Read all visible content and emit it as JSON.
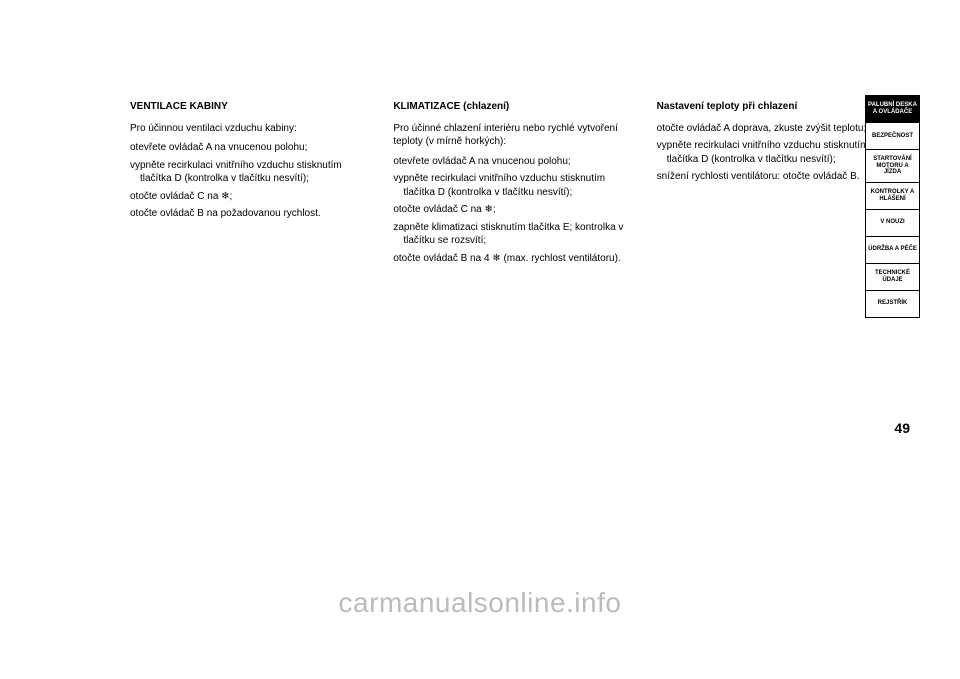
{
  "columns": {
    "col1": {
      "title": "VENTILACE KABINY",
      "intro": "Pro účinnou ventilaci vzduchu kabiny:",
      "items": [
        "otevřete ovládač A na vnucenou polohu;",
        "vypněte recirkulaci vnitřního vzduchu stisknutím tlačítka D (kontrolka v tlačítku nesvítí);",
        "otočte ovládač C na ❄;",
        "otočte ovládač B na požadovanou rychlost."
      ]
    },
    "col2": {
      "title": "KLIMATIZACE (chlazení)",
      "intro": "Pro účinné chlazení interiéru nebo rychlé vytvoření teploty (v mírně horkých):",
      "items": [
        "otevřete ovládač A na vnucenou polohu;",
        "vypněte recirkulaci vnitřního vzduchu stisknutím tlačítka D (kontrolka v tlačítku nesvítí);",
        "otočte ovládač C na ❄;",
        "zapněte klimatizaci stisknutím tlačítka E; kontrolka v tlačítku se rozsvítí;",
        "otočte ovládač B na 4 ❄ (max. rychlost ventilátoru)."
      ]
    },
    "col3": {
      "title": "Nastavení teploty při chlazení",
      "items": [
        "otočte ovládač A doprava, zkuste zvýšit teplotu;",
        "vypněte recirkulaci vnitřního vzduchu stisknutím tlačítka D (kontrolka v tlačítku nesvítí);",
        "snížení rychlosti ventilátoru: otočte ovládač B."
      ]
    }
  },
  "sidebar": {
    "tabs": [
      {
        "label": "PALUBNÍ DESKA A OVLÁDAČE",
        "active": true
      },
      {
        "label": "BEZPEČNOST",
        "active": false
      },
      {
        "label": "STARTOVÁNÍ MOTORU A JÍZDA",
        "active": false
      },
      {
        "label": "KONTROLKY A HLÁŠENÍ",
        "active": false
      },
      {
        "label": "V NOUZI",
        "active": false
      },
      {
        "label": "ÚDRŽBA A PÉČE",
        "active": false
      },
      {
        "label": "TECHNICKÉ ÚDAJE",
        "active": false
      },
      {
        "label": "REJSTŘÍK",
        "active": false
      }
    ]
  },
  "pageNumber": "49",
  "watermark": "carmanualsonline.info"
}
